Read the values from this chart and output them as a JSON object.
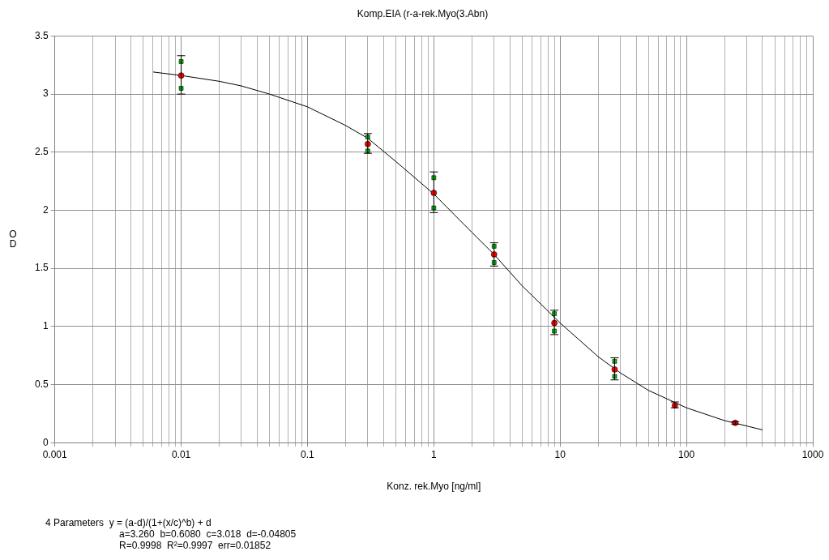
{
  "chart_data": {
    "type": "scatter",
    "title": "Komp.EIA (r-a-rek.Myo(3.Abn)",
    "xlabel": "Konz. rek.Myo [ng/ml]",
    "ylabel": "OD",
    "log": "x",
    "grid": true,
    "legend": false,
    "xlim": [
      0.001,
      1000
    ],
    "ylim": [
      0,
      3.5
    ],
    "xticks": [
      0.001,
      {
        "value": 0.002,
        "label": null
      },
      {
        "value": 0.003,
        "label": null
      },
      {
        "value": 0.004,
        "label": null
      },
      {
        "value": 0.005,
        "label": null
      },
      {
        "value": 0.006,
        "label": null
      },
      {
        "value": 0.007,
        "label": null
      },
      {
        "value": 0.008,
        "label": null
      },
      {
        "value": 0.009,
        "label": null
      },
      0.01,
      {
        "value": 0.02,
        "label": null
      },
      {
        "value": 0.03,
        "label": null
      },
      {
        "value": 0.04,
        "label": null
      },
      {
        "value": 0.05,
        "label": null
      },
      {
        "value": 0.06,
        "label": null
      },
      {
        "value": 0.07,
        "label": null
      },
      {
        "value": 0.08,
        "label": null
      },
      {
        "value": 0.09,
        "label": null
      },
      0.1,
      {
        "value": 0.2,
        "label": null
      },
      {
        "value": 0.3,
        "label": null
      },
      {
        "value": 0.4,
        "label": null
      },
      {
        "value": 0.5,
        "label": null
      },
      {
        "value": 0.6,
        "label": null
      },
      {
        "value": 0.7,
        "label": null
      },
      {
        "value": 0.8,
        "label": null
      },
      {
        "value": 0.9,
        "label": null
      },
      1,
      {
        "value": 2,
        "label": null
      },
      {
        "value": 3,
        "label": null
      },
      {
        "value": 4,
        "label": null
      },
      {
        "value": 5,
        "label": null
      },
      {
        "value": 6,
        "label": null
      },
      {
        "value": 7,
        "label": null
      },
      {
        "value": 8,
        "label": null
      },
      {
        "value": 9,
        "label": null
      },
      10,
      {
        "value": 20,
        "label": null
      },
      {
        "value": 30,
        "label": null
      },
      {
        "value": 40,
        "label": null
      },
      {
        "value": 50,
        "label": null
      },
      {
        "value": 60,
        "label": null
      },
      {
        "value": 70,
        "label": null
      },
      {
        "value": 80,
        "label": null
      },
      {
        "value": 90,
        "label": null
      },
      100,
      {
        "value": 200,
        "label": null
      },
      {
        "value": 300,
        "label": null
      },
      {
        "value": 400,
        "label": null
      },
      {
        "value": 500,
        "label": null
      },
      {
        "value": 600,
        "label": null
      },
      {
        "value": 700,
        "label": null
      },
      {
        "value": 800,
        "label": null
      },
      {
        "value": 900,
        "label": null
      },
      1000
    ],
    "yticks": [
      0,
      0.5,
      1,
      1.5,
      2,
      2.5,
      3,
      3.5
    ],
    "series": [
      {
        "type": "line",
        "marker": "none",
        "color": "#000000",
        "x": [
          0.006,
          0.01,
          0.02,
          0.03,
          0.05,
          0.1,
          0.2,
          0.3,
          0.5,
          1,
          2,
          3,
          5,
          10,
          20,
          30,
          50,
          100,
          200,
          400
        ],
        "values": [
          3.19,
          3.16,
          3.11,
          3.07,
          3.0,
          2.89,
          2.73,
          2.62,
          2.42,
          2.14,
          1.81,
          1.62,
          1.35,
          1.03,
          0.74,
          0.6,
          0.45,
          0.3,
          0.19,
          0.11
        ]
      },
      {
        "type": "scatter",
        "marker": "square",
        "color": "#00c000",
        "x": [
          0.01,
          0.01,
          0.3,
          0.3,
          1,
          1,
          3,
          3,
          9,
          9,
          27,
          27
        ],
        "values": [
          3.28,
          3.05,
          2.63,
          2.51,
          2.28,
          2.02,
          1.69,
          1.55,
          1.11,
          0.96,
          0.7,
          0.57
        ]
      },
      {
        "type": "scatter",
        "marker": "circle",
        "color": "#ff0000",
        "x": [
          0.01,
          0.3,
          1,
          3,
          9,
          27,
          81,
          243
        ],
        "values": [
          3.16,
          2.57,
          2.15,
          1.62,
          1.03,
          0.63,
          0.32,
          0.17
        ],
        "errors": [
          [
            3.0,
            3.33
          ],
          [
            2.49,
            2.66
          ],
          [
            1.98,
            2.33
          ],
          [
            1.52,
            1.72
          ],
          [
            0.93,
            1.14
          ],
          [
            0.54,
            0.73
          ],
          [
            0.3,
            0.35
          ],
          [
            0.16,
            0.18
          ]
        ]
      }
    ],
    "annotations": [
      "4 Parameters  y = (a-d)/(1+(x/c)^b) + d",
      "a=3.260  b=0.6080  c=3.018  d=-0.04805",
      "R=0.9998  R²=0.9997  err=0.01852"
    ]
  }
}
